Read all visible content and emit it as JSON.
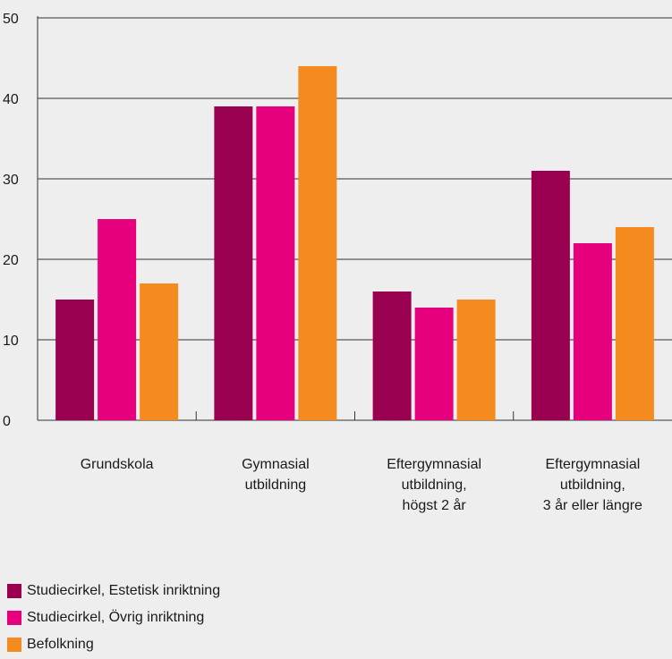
{
  "chart_data": {
    "type": "bar",
    "categories": [
      [
        "Grundskola"
      ],
      [
        "Gymnasial",
        "utbildning"
      ],
      [
        "Eftergymnasial",
        "utbildning,",
        "högst 2 år"
      ],
      [
        "Eftergymnasial",
        "utbildning,",
        "3 år eller längre"
      ]
    ],
    "series": [
      {
        "name": "Studiecirkel, Estetisk inriktning",
        "color": "#990050",
        "values": [
          15,
          39,
          16,
          31
        ]
      },
      {
        "name": "Studiecirkel, Övrig inriktning",
        "color": "#e6007e",
        "values": [
          25,
          39,
          14,
          22
        ]
      },
      {
        "name": "Befolkning",
        "color": "#f58a1f",
        "values": [
          17,
          44,
          15,
          24
        ]
      }
    ],
    "ylim": [
      0,
      50
    ],
    "yticks": [
      0,
      10,
      20,
      30,
      40,
      50
    ],
    "grid": true,
    "legend": "bottom-left"
  }
}
